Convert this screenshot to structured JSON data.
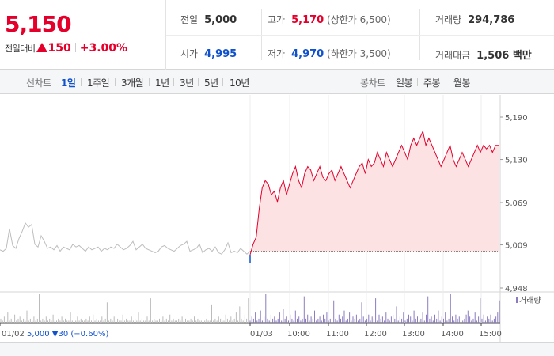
{
  "header": {
    "price": "5,150",
    "change_label": "전일대비",
    "change_value": "150",
    "change_pct": "+3.00%",
    "stats": [
      {
        "key": "전일",
        "value": "5,000",
        "color": "normal",
        "sub": ""
      },
      {
        "key": "고가",
        "value": "5,170",
        "color": "red",
        "sub": "(상한가 6,500)"
      },
      {
        "key": "거래량",
        "value": "294,786",
        "color": "normal",
        "sub": ""
      },
      {
        "key": "시가",
        "value": "4,995",
        "color": "blue",
        "sub": ""
      },
      {
        "key": "저가",
        "value": "4,970",
        "color": "blue",
        "sub": "(하한가 3,500)"
      },
      {
        "key": "거래대금",
        "value": "1,506 백만",
        "color": "normal",
        "sub": ""
      }
    ]
  },
  "toolbar": {
    "line_chart_label": "선차트",
    "periods": [
      "1일",
      "1주일",
      "3개월",
      "1년",
      "3년",
      "5년",
      "10년"
    ],
    "selected_period": "1일",
    "candle_label": "봉차트",
    "candles": [
      "일봉",
      "주봉",
      "월봉"
    ]
  },
  "colors": {
    "up": "#e4002b",
    "down": "#1152cc",
    "prev_line": "#bdbdbd",
    "fill": "#fde2e4",
    "volume": "#8b7bbf"
  },
  "chart_data": {
    "type": "line",
    "yticks": [
      5190,
      5130,
      5069,
      5009,
      4948
    ],
    "ytick_labels": [
      "5,190",
      "5,130",
      "5,069",
      "5,009",
      "4,948"
    ],
    "ylim": [
      4948,
      5190
    ],
    "base_price": 5000,
    "series": [
      {
        "name": "01/02",
        "values": [
          5002,
          5000,
          5004,
          5032,
          5008,
          5004,
          5018,
          5028,
          5040,
          5034,
          5038,
          5010,
          5006,
          5022,
          5014,
          5004,
          5006,
          5002,
          5008,
          5000,
          5006,
          5004,
          5002,
          5010,
          5006,
          5008,
          5004,
          5000,
          5006,
          5002,
          5004,
          5006,
          5000,
          5004,
          5002,
          5006,
          5004,
          5010,
          5006,
          5002,
          5004,
          5008,
          5014,
          5002,
          5006,
          5010,
          5004,
          5002,
          5000,
          4998,
          5000,
          5006,
          5008,
          5004,
          5002,
          5000,
          5004,
          5008,
          5010,
          5014,
          5000,
          5002,
          5004,
          5010,
          4998,
          5002,
          5004,
          5000,
          5006,
          4998,
          4996,
          5002,
          5012,
          4998,
          5000,
          4998,
          5004,
          5000,
          4996,
          5000
        ]
      },
      {
        "name": "01/03",
        "values": [
          4995,
          5010,
          5020,
          5060,
          5090,
          5100,
          5095,
          5080,
          5085,
          5070,
          5090,
          5100,
          5080,
          5095,
          5110,
          5120,
          5100,
          5090,
          5110,
          5120,
          5115,
          5100,
          5110,
          5120,
          5105,
          5100,
          5110,
          5115,
          5100,
          5110,
          5120,
          5110,
          5100,
          5090,
          5100,
          5110,
          5120,
          5125,
          5110,
          5130,
          5120,
          5125,
          5140,
          5130,
          5120,
          5140,
          5130,
          5120,
          5130,
          5140,
          5150,
          5140,
          5130,
          5150,
          5160,
          5150,
          5160,
          5170,
          5150,
          5160,
          5150,
          5140,
          5130,
          5120,
          5130,
          5140,
          5150,
          5130,
          5120,
          5130,
          5140,
          5130,
          5120,
          5130,
          5140,
          5150,
          5140,
          5150,
          5145,
          5150,
          5140,
          5150,
          5150
        ]
      }
    ],
    "volume": {
      "series_name": "거래량",
      "values": [
        2,
        1,
        3,
        1,
        5,
        1,
        2,
        1,
        4,
        1,
        2,
        3,
        1,
        2,
        1,
        6,
        1,
        2,
        1,
        3,
        1,
        2,
        14,
        1,
        2,
        1,
        3,
        1,
        2,
        1,
        4,
        1,
        1,
        2,
        1,
        3,
        1,
        2,
        1,
        1,
        5,
        1,
        2,
        1,
        3,
        1,
        2,
        1,
        1,
        2,
        1,
        3,
        1,
        4,
        1,
        2,
        1,
        1,
        3,
        1,
        2,
        10,
        1,
        2,
        1,
        3,
        1,
        2,
        1,
        1,
        4,
        1,
        2,
        1,
        1,
        3,
        1,
        2,
        1,
        5,
        1,
        2,
        1,
        1,
        3,
        1,
        12,
        1,
        2,
        1,
        1,
        2,
        1,
        3,
        1,
        2,
        1,
        4,
        1,
        2,
        1,
        1,
        2,
        1,
        3,
        1,
        2,
        1,
        1,
        2,
        1,
        3,
        1,
        2,
        1,
        1,
        4,
        1,
        2,
        1,
        1,
        9,
        1,
        2,
        1,
        3,
        2,
        1,
        1,
        4,
        2,
        1,
        3,
        1,
        2,
        5,
        1,
        8,
        2,
        1,
        4,
        2,
        12,
        1,
        3,
        2,
        5,
        1,
        2,
        6,
        1,
        3,
        14,
        2,
        1,
        4,
        2,
        3,
        1,
        2,
        5,
        1,
        7,
        2,
        3,
        1,
        4,
        2,
        1,
        6,
        2,
        3,
        1,
        2,
        13,
        2,
        4,
        1,
        3,
        2,
        6,
        1,
        2,
        3,
        1,
        4,
        2,
        5,
        1,
        2,
        3,
        11,
        2,
        1,
        4,
        2,
        3,
        6,
        1,
        2,
        5,
        1,
        3,
        2,
        4,
        1,
        2,
        10,
        3,
        1,
        2,
        4,
        1,
        3,
        2,
        12,
        1,
        4,
        2,
        3,
        1,
        5,
        2,
        1,
        3,
        4,
        2,
        8,
        1,
        3,
        2,
        5,
        1,
        2,
        4,
        3,
        1,
        6,
        2,
        3,
        1,
        2,
        5,
        1,
        4,
        13,
        2,
        3,
        1,
        4,
        2,
        6,
        1,
        3,
        2,
        5,
        1,
        2,
        14,
        3,
        1,
        4,
        2,
        3,
        5,
        1,
        2,
        4,
        6,
        3,
        1,
        2,
        5,
        1,
        3,
        12,
        2,
        4,
        1,
        3,
        2,
        4,
        1,
        2,
        3,
        5,
        11
      ]
    },
    "prev_day_label": "01/02",
    "prev_day_info": "5,000",
    "prev_day_change": "▼30",
    "prev_day_pct": "(−0.60%)",
    "xticks": [
      "01/03",
      "10:00",
      "11:00",
      "12:00",
      "13:00",
      "14:00",
      "15:00"
    ]
  }
}
